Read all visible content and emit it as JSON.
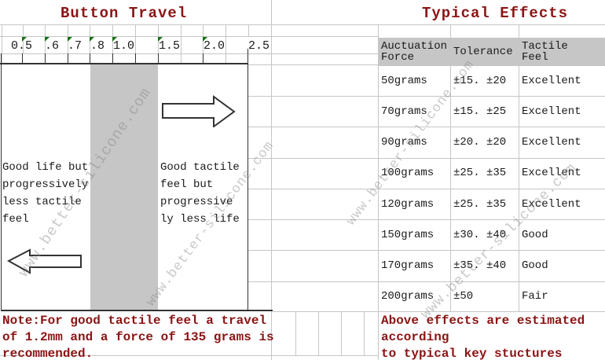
{
  "titles": {
    "left": "Button Travel",
    "right": "Typical Effects"
  },
  "ruler": {
    "labels": [
      "0.5",
      ".6",
      ".7",
      ".8",
      "1.0",
      "1.5",
      "2.0",
      "2.5"
    ],
    "marker_icon": "error-indicator-triangle",
    "marker_color": "#177017"
  },
  "diagram": {
    "left_caption": [
      "Good life but",
      "progressively",
      "less tactile",
      "feel"
    ],
    "right_caption": [
      "Good tactile",
      "feel but",
      "progressive",
      "ly less life"
    ],
    "arrows": [
      "arrow-right-icon",
      "arrow-left-icon"
    ]
  },
  "table": {
    "headers": [
      [
        "Auctuation",
        "Force"
      ],
      [
        "Tolerance"
      ],
      [
        "Tactile",
        "Feel"
      ]
    ],
    "rows": [
      {
        "force": "50grams",
        "tolerance": "±15. ±20",
        "feel": "Excellent"
      },
      {
        "force": "70grams",
        "tolerance": "±15. ±25",
        "feel": "Excellent"
      },
      {
        "force": "90grams",
        "tolerance": "±20. ±20",
        "feel": "Excellent"
      },
      {
        "force": "100grams",
        "tolerance": "±25. ±35",
        "feel": "Excellent"
      },
      {
        "force": "120grams",
        "tolerance": "±25. ±35",
        "feel": "Excellent"
      },
      {
        "force": "150grams",
        "tolerance": "±30. ±40",
        "feel": "Good"
      },
      {
        "force": "170grams",
        "tolerance": "±35. ±40",
        "feel": "Good"
      },
      {
        "force": "200grams",
        "tolerance": "±50",
        "feel": "Fair"
      }
    ]
  },
  "notes": {
    "left": [
      "Note:For good tactile feel a travel",
      "of 1.2mm and a force of 135 grams is",
      "recommended."
    ],
    "right": [
      "Above effects are estimated",
      "according",
      "to typical key stuctures"
    ]
  },
  "watermark": {
    "text": "www.better-silicone.com"
  },
  "colors": {
    "accent_red": "#8b1414",
    "gridline": "#c6c6c6",
    "fill_gray": "#c6c6c6",
    "line_dark": "#333333",
    "marker_green": "#177017"
  },
  "chart_data": {
    "type": "table",
    "title": "Typical Effects",
    "columns": [
      "Auctuation Force",
      "Tolerance",
      "Tactile Feel"
    ],
    "rows": [
      [
        "50grams",
        "±15. ±20",
        "Excellent"
      ],
      [
        "70grams",
        "±15. ±25",
        "Excellent"
      ],
      [
        "90grams",
        "±20. ±20",
        "Excellent"
      ],
      [
        "100grams",
        "±25. ±35",
        "Excellent"
      ],
      [
        "120grams",
        "±25. ±35",
        "Excellent"
      ],
      [
        "150grams",
        "±30. ±40",
        "Good"
      ],
      [
        "170grams",
        "±35. ±40",
        "Good"
      ],
      [
        "200grams",
        "±50",
        "Fair"
      ]
    ],
    "travel_scale_labels_mm": [
      "0.5",
      ".6",
      ".7",
      ".8",
      "1.0",
      "1.5",
      "2.0",
      "2.5"
    ],
    "annotation": "Note:For good tactile feel a travel of 1.2mm and a force of 135 grams is recommended."
  }
}
